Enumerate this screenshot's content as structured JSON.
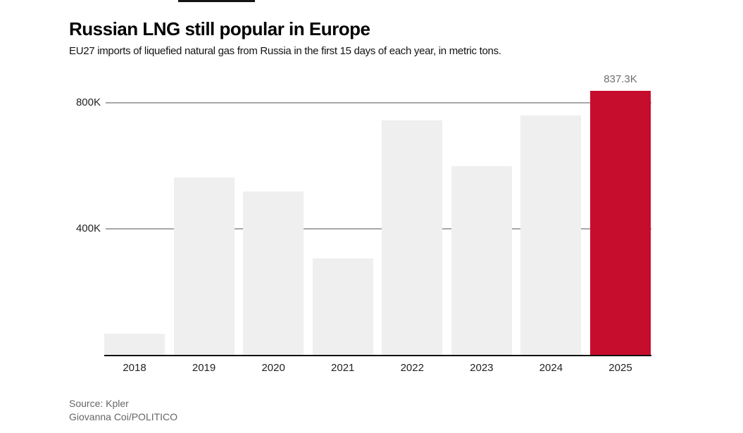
{
  "page": {
    "background": "#ffffff",
    "artifact_color": "#141414"
  },
  "header": {
    "title": "Russian LNG still popular in Europe",
    "subtitle": "EU27 imports of liquefied natural gas from Russia in the first 15 days of each year, in metric tons."
  },
  "chart_data": {
    "type": "bar",
    "title": "Russian LNG still popular in Europe",
    "subtitle": "EU27 imports of liquefied natural gas from Russia in the first 15 days of each year, in metric tons.",
    "unit": "metric tons",
    "categories": [
      "2018",
      "2019",
      "2020",
      "2021",
      "2022",
      "2023",
      "2024",
      "2025"
    ],
    "values": [
      70000,
      562000,
      518000,
      308000,
      744000,
      599000,
      758000,
      837300
    ],
    "ylim": [
      0,
      890000
    ],
    "yticks": [
      {
        "value": 400000,
        "label": "400K"
      },
      {
        "value": 800000,
        "label": "800K"
      }
    ],
    "grid": true,
    "legend": "none",
    "highlight_index": 7,
    "highlight_label": "837.3K",
    "bar_color": "#efefef",
    "highlight_color": "#c70d2d",
    "grid_color": "#a8a8a8",
    "axis_color": "#111111",
    "tick_label_color": "#222222",
    "value_label_color": "#6e6e6e"
  },
  "footer": {
    "source": "Source: Kpler",
    "byline": "Giovanna Coi/POLITICO"
  }
}
